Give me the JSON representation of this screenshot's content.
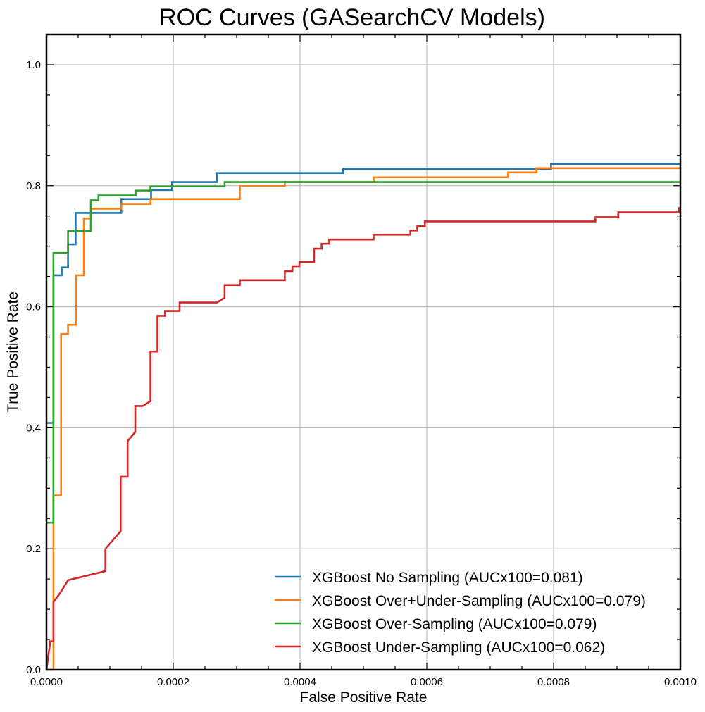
{
  "chart_data": {
    "type": "line",
    "title": "ROC Curves (GASearchCV Models)",
    "xlabel": "False Positive Rate",
    "ylabel": "True Positive Rate",
    "xlim": [
      0,
      0.001
    ],
    "ylim": [
      0,
      1.05
    ],
    "x_ticks": [
      "0.0000",
      "0.0002",
      "0.0004",
      "0.0006",
      "0.0008",
      "0.0010"
    ],
    "x_tick_values": [
      0,
      0.0002,
      0.0004,
      0.0006,
      0.0008,
      0.001
    ],
    "y_ticks": [
      "0.0",
      "0.2",
      "0.4",
      "0.6",
      "0.8",
      "1.0"
    ],
    "y_tick_values": [
      0,
      0.2,
      0.4,
      0.6,
      0.8,
      1.0
    ],
    "grid": true,
    "legend_position": "lower-right",
    "series": [
      {
        "name": "XGBoost No Sampling (AUCx100=0.081)",
        "color": "#1f77b4",
        "points": [
          [
            0,
            0.408
          ],
          [
            1.1e-05,
            0.408
          ],
          [
            1.1e-05,
            0.652
          ],
          [
            2.4e-05,
            0.652
          ],
          [
            2.4e-05,
            0.665
          ],
          [
            3.4e-05,
            0.665
          ],
          [
            3.4e-05,
            0.703
          ],
          [
            4.6e-05,
            0.703
          ],
          [
            4.6e-05,
            0.755
          ],
          [
            0.000118,
            0.755
          ],
          [
            0.000118,
            0.778
          ],
          [
            0.000165,
            0.778
          ],
          [
            0.000165,
            0.793
          ],
          [
            0.000198,
            0.793
          ],
          [
            0.000198,
            0.806
          ],
          [
            0.000269,
            0.806
          ],
          [
            0.000269,
            0.821
          ],
          [
            0.000468,
            0.821
          ],
          [
            0.000468,
            0.828
          ],
          [
            0.000796,
            0.828
          ],
          [
            0.000796,
            0.836
          ],
          [
            0.001,
            0.836
          ]
        ]
      },
      {
        "name": "XGBoost Over+Under-Sampling (AUCx100=0.079)",
        "color": "#ff7f0e",
        "points": [
          [
            0,
            0
          ],
          [
            1.1e-05,
            0
          ],
          [
            1.1e-05,
            0.288
          ],
          [
            2.3e-05,
            0.288
          ],
          [
            2.3e-05,
            0.555
          ],
          [
            3.4e-05,
            0.555
          ],
          [
            3.4e-05,
            0.57
          ],
          [
            4.7e-05,
            0.57
          ],
          [
            4.7e-05,
            0.652
          ],
          [
            5.9e-05,
            0.652
          ],
          [
            5.9e-05,
            0.746
          ],
          [
            7e-05,
            0.746
          ],
          [
            7e-05,
            0.762
          ],
          [
            0.000118,
            0.762
          ],
          [
            0.000118,
            0.77
          ],
          [
            0.000164,
            0.77
          ],
          [
            0.000164,
            0.778
          ],
          [
            0.000305,
            0.778
          ],
          [
            0.000305,
            0.8
          ],
          [
            0.000376,
            0.8
          ],
          [
            0.000376,
            0.806
          ],
          [
            0.000517,
            0.806
          ],
          [
            0.000517,
            0.814
          ],
          [
            0.000728,
            0.814
          ],
          [
            0.000728,
            0.822
          ],
          [
            0.000773,
            0.822
          ],
          [
            0.000773,
            0.829
          ],
          [
            0.001,
            0.829
          ]
        ]
      },
      {
        "name": "XGBoost Over-Sampling (AUCx100=0.079)",
        "color": "#2ca02c",
        "points": [
          [
            0,
            0.243
          ],
          [
            1.1e-05,
            0.243
          ],
          [
            1.1e-05,
            0.689
          ],
          [
            3.4e-05,
            0.689
          ],
          [
            3.4e-05,
            0.725
          ],
          [
            7e-05,
            0.725
          ],
          [
            7e-05,
            0.776
          ],
          [
            8.2e-05,
            0.776
          ],
          [
            8.2e-05,
            0.784
          ],
          [
            0.000141,
            0.784
          ],
          [
            0.000141,
            0.792
          ],
          [
            0.000164,
            0.792
          ],
          [
            0.000164,
            0.799
          ],
          [
            0.000281,
            0.799
          ],
          [
            0.000281,
            0.806
          ],
          [
            0.001,
            0.806
          ]
        ]
      },
      {
        "name": "XGBoost Under-Sampling (AUCx100=0.062)",
        "color": "#d62728",
        "points": [
          [
            0,
            0
          ],
          [
            6e-06,
            0.047
          ],
          [
            1.1e-05,
            0.047
          ],
          [
            1.1e-05,
            0.112
          ],
          [
            2.3e-05,
            0.129
          ],
          [
            3.4e-05,
            0.148
          ],
          [
            9.3e-05,
            0.163
          ],
          [
            9.3e-05,
            0.2
          ],
          [
            0.000117,
            0.229
          ],
          [
            0.000117,
            0.319
          ],
          [
            0.000128,
            0.319
          ],
          [
            0.000128,
            0.378
          ],
          [
            0.00014,
            0.393
          ],
          [
            0.00014,
            0.436
          ],
          [
            0.000152,
            0.436
          ],
          [
            0.000164,
            0.444
          ],
          [
            0.000164,
            0.526
          ],
          [
            0.000175,
            0.526
          ],
          [
            0.000175,
            0.585
          ],
          [
            0.000187,
            0.585
          ],
          [
            0.000187,
            0.593
          ],
          [
            0.00021,
            0.593
          ],
          [
            0.00021,
            0.607
          ],
          [
            0.000269,
            0.607
          ],
          [
            0.000281,
            0.615
          ],
          [
            0.000281,
            0.636
          ],
          [
            0.000305,
            0.636
          ],
          [
            0.000305,
            0.644
          ],
          [
            0.000376,
            0.644
          ],
          [
            0.000376,
            0.659
          ],
          [
            0.000388,
            0.659
          ],
          [
            0.000388,
            0.667
          ],
          [
            0.000399,
            0.667
          ],
          [
            0.000399,
            0.674
          ],
          [
            0.000422,
            0.674
          ],
          [
            0.000422,
            0.696
          ],
          [
            0.000434,
            0.696
          ],
          [
            0.000434,
            0.704
          ],
          [
            0.000446,
            0.704
          ],
          [
            0.000446,
            0.711
          ],
          [
            0.000516,
            0.711
          ],
          [
            0.000516,
            0.719
          ],
          [
            0.000574,
            0.719
          ],
          [
            0.000574,
            0.726
          ],
          [
            0.000585,
            0.726
          ],
          [
            0.000585,
            0.733
          ],
          [
            0.000597,
            0.733
          ],
          [
            0.000597,
            0.741
          ],
          [
            0.000866,
            0.741
          ],
          [
            0.000866,
            0.748
          ],
          [
            0.000902,
            0.748
          ],
          [
            0.000902,
            0.756
          ],
          [
            0.000998,
            0.756
          ],
          [
            0.000998,
            0.763
          ],
          [
            0.001,
            0.763
          ]
        ]
      }
    ]
  }
}
